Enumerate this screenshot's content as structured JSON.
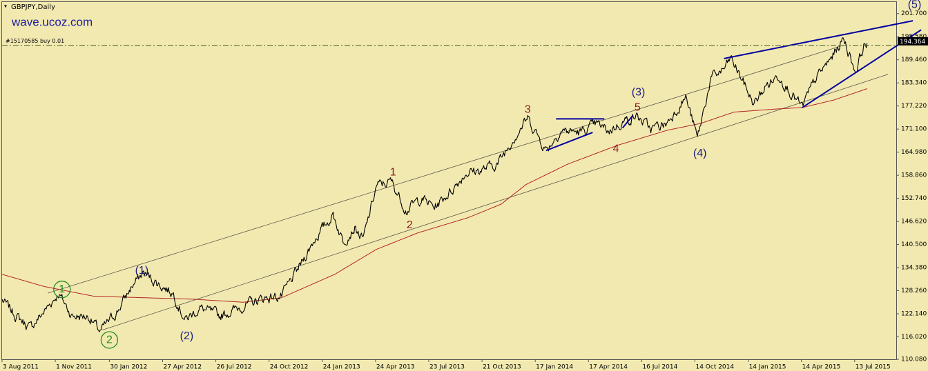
{
  "header": {
    "symbol": "GBPJPY,Daily",
    "watermark": "wave.ucoz.com",
    "order_label": "#15170585 buy 0.01"
  },
  "chart_data": {
    "type": "line",
    "title": "GBPJPY,Daily",
    "ylim": [
      110.08,
      204.94
    ],
    "xlim_index": [
      0,
      1075
    ],
    "y_ticks": [
      201.7,
      195.58,
      189.46,
      183.34,
      177.22,
      171.1,
      164.98,
      158.86,
      152.74,
      146.62,
      140.5,
      134.38,
      128.26,
      122.14,
      116.02,
      110.08
    ],
    "x_ticks": [
      {
        "label": "3 Aug 2011",
        "index": 0
      },
      {
        "label": "1 Nov 2011",
        "index": 64
      },
      {
        "label": "30 Jan 2012",
        "index": 129
      },
      {
        "label": "27 Apr 2012",
        "index": 193
      },
      {
        "label": "26 Jul 2012",
        "index": 257
      },
      {
        "label": "24 Oct 2012",
        "index": 321
      },
      {
        "label": "24 Jan 2013",
        "index": 385
      },
      {
        "label": "24 Apr 2013",
        "index": 449
      },
      {
        "label": "23 Jul 2013",
        "index": 513
      },
      {
        "label": "21 Oct 2013",
        "index": 577
      },
      {
        "label": "17 Jan 2014",
        "index": 641
      },
      {
        "label": "17 Apr 2014",
        "index": 705
      },
      {
        "label": "16 Jul 2014",
        "index": 769
      },
      {
        "label": "14 Oct 2014",
        "index": 833
      },
      {
        "label": "14 Jan 2015",
        "index": 897
      },
      {
        "label": "14 Apr 2015",
        "index": 961
      },
      {
        "label": "13 Jul 2015",
        "index": 1025
      }
    ],
    "current_price": "194.364",
    "current_price_value": 194.364,
    "order_line_price": 193.3,
    "price_series": [
      [
        0,
        125.8
      ],
      [
        16,
        121.8
      ],
      [
        34,
        118.4
      ],
      [
        50,
        122.6
      ],
      [
        68,
        127.6
      ],
      [
        84,
        121.6
      ],
      [
        104,
        121.4
      ],
      [
        118,
        117.4
      ],
      [
        138,
        122.6
      ],
      [
        156,
        129.4
      ],
      [
        170,
        133.0
      ],
      [
        190,
        129.8
      ],
      [
        206,
        127.6
      ],
      [
        220,
        120.5
      ],
      [
        238,
        123.6
      ],
      [
        262,
        121.6
      ],
      [
        290,
        124.2
      ],
      [
        316,
        126.4
      ],
      [
        336,
        126.8
      ],
      [
        356,
        134.0
      ],
      [
        376,
        142.0
      ],
      [
        398,
        148.4
      ],
      [
        410,
        141.4
      ],
      [
        424,
        145.0
      ],
      [
        434,
        141.6
      ],
      [
        450,
        156.0
      ],
      [
        468,
        157.2
      ],
      [
        486,
        149.6
      ],
      [
        504,
        152.8
      ],
      [
        520,
        150.4
      ],
      [
        540,
        154.8
      ],
      [
        558,
        159.6
      ],
      [
        576,
        160.2
      ],
      [
        596,
        162.0
      ],
      [
        614,
        168.4
      ],
      [
        632,
        174.0
      ],
      [
        654,
        165.6
      ],
      [
        672,
        170.8
      ],
      [
        696,
        170.2
      ],
      [
        714,
        172.4
      ],
      [
        730,
        170.6
      ],
      [
        746,
        173.0
      ],
      [
        762,
        174.6
      ],
      [
        780,
        171.2
      ],
      [
        798,
        172.4
      ],
      [
        822,
        179.6
      ],
      [
        836,
        168.6
      ],
      [
        852,
        184.4
      ],
      [
        868,
        187.0
      ],
      [
        876,
        189.8
      ],
      [
        888,
        185.0
      ],
      [
        904,
        177.6
      ],
      [
        918,
        182.4
      ],
      [
        934,
        185.4
      ],
      [
        950,
        180.2
      ],
      [
        962,
        176.8
      ],
      [
        978,
        184.4
      ],
      [
        996,
        189.6
      ],
      [
        1012,
        195.2
      ],
      [
        1026,
        186.4
      ],
      [
        1036,
        193.2
      ],
      [
        1040,
        193.9
      ]
    ],
    "ma_series": [
      [
        0,
        132.6
      ],
      [
        50,
        129.4
      ],
      [
        110,
        126.8
      ],
      [
        170,
        126.4
      ],
      [
        230,
        126.0
      ],
      [
        290,
        125.2
      ],
      [
        336,
        126.4
      ],
      [
        400,
        132.6
      ],
      [
        450,
        139.2
      ],
      [
        500,
        143.6
      ],
      [
        560,
        147.6
      ],
      [
        600,
        151.2
      ],
      [
        630,
        156.4
      ],
      [
        680,
        161.8
      ],
      [
        740,
        166.8
      ],
      [
        800,
        170.8
      ],
      [
        840,
        172.6
      ],
      [
        880,
        175.6
      ],
      [
        930,
        176.4
      ],
      [
        962,
        176.8
      ],
      [
        1000,
        178.8
      ],
      [
        1040,
        181.8
      ]
    ],
    "channel_lines": [
      {
        "x1": 55,
        "y1": 127.6,
        "x2": 1010,
        "y2": 193.2
      },
      {
        "x1": 120,
        "y1": 117.8,
        "x2": 1065,
        "y2": 185.6
      }
    ],
    "pattern_lines": [
      {
        "x1": 666,
        "y1": 173.8,
        "x2": 724,
        "y2": 173.8
      },
      {
        "x1": 654,
        "y1": 165.4,
        "x2": 710,
        "y2": 170.2
      },
      {
        "x1": 746,
        "y1": 171.4,
        "x2": 758,
        "y2": 174.6
      },
      {
        "x1": 868,
        "y1": 189.8,
        "x2": 1095,
        "y2": 199.8
      },
      {
        "x1": 962,
        "y1": 176.8,
        "x2": 1105,
        "y2": 197.4
      }
    ],
    "wave_labels": [
      {
        "text": "1",
        "x": 72,
        "y": 128.6,
        "circle": true,
        "color": "#1e8f1e"
      },
      {
        "text": "2",
        "x": 129,
        "y": 115.2,
        "circle": true,
        "color": "#1e8f1e"
      },
      {
        "text": "(1)",
        "x": 168,
        "y": 133.6,
        "circle": false,
        "color": "#1a1a80"
      },
      {
        "text": "(2)",
        "x": 222,
        "y": 116.2,
        "circle": false,
        "color": "#1a1a80"
      },
      {
        "text": "1",
        "x": 470,
        "y": 159.6,
        "circle": false,
        "color": "#8b1a1a"
      },
      {
        "text": "2",
        "x": 490,
        "y": 145.6,
        "circle": false,
        "color": "#8b1a1a"
      },
      {
        "text": "3",
        "x": 632,
        "y": 176.2,
        "circle": false,
        "color": "#8b1a1a"
      },
      {
        "text": "4",
        "x": 738,
        "y": 165.8,
        "circle": false,
        "color": "#8b1a1a"
      },
      {
        "text": "5",
        "x": 764,
        "y": 176.8,
        "circle": false,
        "color": "#8b1a1a"
      },
      {
        "text": "(3)",
        "x": 765,
        "y": 180.8,
        "circle": false,
        "color": "#1a1a80"
      },
      {
        "text": "(4)",
        "x": 839,
        "y": 164.6,
        "circle": false,
        "color": "#1a1a80"
      },
      {
        "text": "(5)",
        "x": 1097,
        "y": 204.0,
        "circle": false,
        "color": "#1a1a80"
      }
    ],
    "colors": {
      "background": "#f2e9b1",
      "price": "#000000",
      "ma": "#b22222",
      "channel": "#5a5a4a",
      "pattern": "#0000a0",
      "order_line": "#556b2f",
      "price_box": "#000000"
    }
  }
}
